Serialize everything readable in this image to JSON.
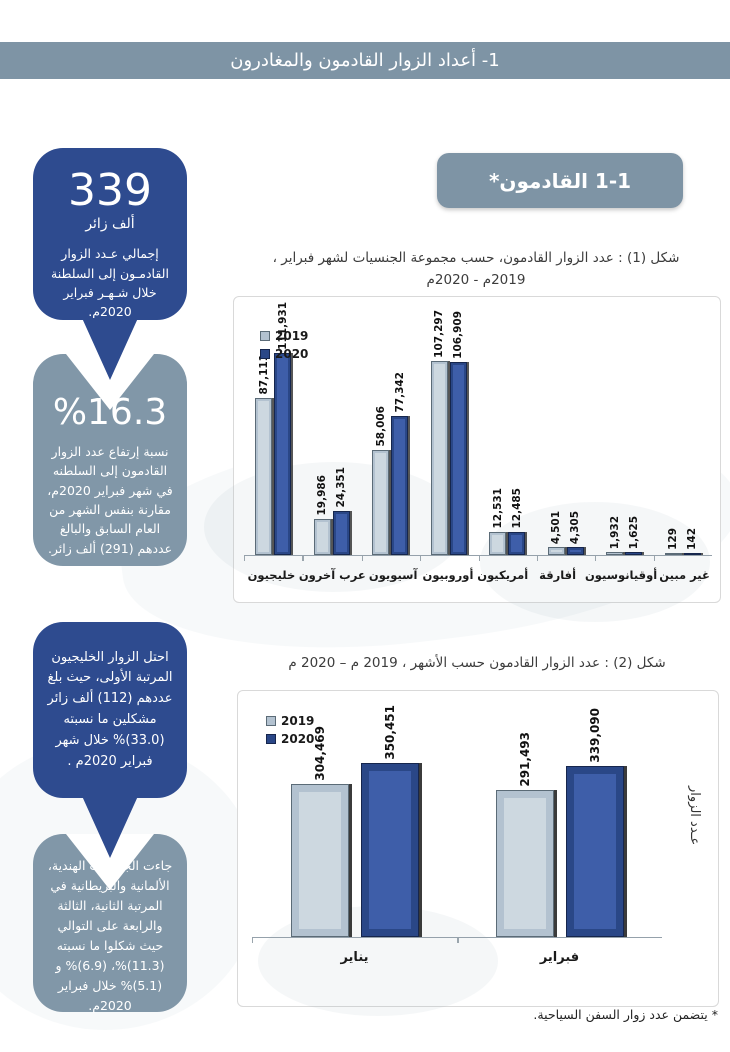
{
  "page": {
    "header_title": "1- أعداد الزوار القادمون والمغادرون",
    "section_pill": "1-1 القادمون*",
    "footnote": "* يتضمن عدد زوار السفن السياحية."
  },
  "colors": {
    "band": "#7E94A5",
    "bubble_blue": "#2E4B8F",
    "bubble_gray": "#8197A8",
    "bar_2020": "#2A4787",
    "bar_2020_panel": "#3E5EA9",
    "bar_2019": "#B3C2D0",
    "bar_2019_panel": "#CDD8E0"
  },
  "callouts": [
    {
      "big": "339",
      "sub": "ألف زائر",
      "text": "إجمالي عـدد الزوار القادمـون إلى السلطنة خلال شـهـر فبراير 2020م."
    },
    {
      "big": "%16.3",
      "text": "نسبة إرتفاع عدد الزوار القادمون إلى السلطنه في شهر فبراير 2020م، مقارنة بنفس الشهر من العام السابق والبالغ عددهم (291) ألف زائر."
    },
    {
      "text": "احتل الزوار الخليجيون المرتبة الأولى، حيث بلغ عددهم (112) ألف زائر مشكلين ما نسبته (33.0)% خلال شهر فبراير 2020م ."
    },
    {
      "text": "جاءت الجنسيات الهندية، الألمانية والبريطانية في المرتبة الثانية، الثالثة والرابعة على التوالي حيث شكلوا ما نسبته (11.3)%، (6.9)% و (5.1)% خلال فبراير 2020م."
    }
  ],
  "chart_data": [
    {
      "type": "bar",
      "title": "شكل (1) : عدد الزوار القادمون، حسب مجموعة الجنسيات لشهر فبراير ، 2019م - 2020م",
      "title_lines": [
        "شكل (1) : عدد الزوار القادمون، حسب مجموعة الجنسيات لشهر فبراير ،",
        "2019م - 2020م"
      ],
      "categories": [
        "غير مبين",
        "أوقيانوسيون",
        "أفارقة",
        "أمريكيون",
        "أوروبيون",
        "آسيويون",
        "عرب آخرون",
        "خليجيون"
      ],
      "series": [
        {
          "name": "2020",
          "values": [
            142,
            1625,
            4305,
            12485,
            106909,
            77342,
            24351,
            111931
          ],
          "labels": [
            "142",
            "1,625",
            "4,305",
            "12,485",
            "106,909",
            "77,342",
            "24,351",
            "111,931"
          ],
          "color": "#2A4787",
          "panel": "#3E5EA9",
          "border": "#16264D"
        },
        {
          "name": "2019",
          "values": [
            129,
            1932,
            4501,
            12531,
            107297,
            58006,
            19986,
            87111
          ],
          "labels": [
            "129",
            "1,932",
            "4,501",
            "12,531",
            "107,297",
            "58,006",
            "19,986",
            "87,111"
          ],
          "color": "#B3C2D0",
          "panel": "#CDD8E0",
          "border": "#5B6B77"
        }
      ],
      "legend": [
        {
          "label": "2019",
          "color": "#B3C2D0",
          "border": "#5B6B77"
        },
        {
          "label": "2020",
          "color": "#2A4787",
          "border": "#16264D"
        }
      ],
      "xlabel": "",
      "ylabel": "",
      "ylim": [
        0,
        112000
      ],
      "grid": false,
      "legend_position": "top-left"
    },
    {
      "type": "bar",
      "title": "شكل (2) :  عدد الزوار القادمون حسب الأشهر ، 2019 م – 2020 م",
      "categories": [
        "فبراير",
        "يناير"
      ],
      "series": [
        {
          "name": "2020",
          "values": [
            339090,
            350451
          ],
          "labels": [
            "339,090",
            "350,451"
          ],
          "color": "#2A4787",
          "panel": "#3E5EA9",
          "border": "#16264D"
        },
        {
          "name": "2019",
          "values": [
            291493,
            304469
          ],
          "labels": [
            "291,493",
            "304,469"
          ],
          "color": "#B3C2D0",
          "panel": "#CDD8E0",
          "border": "#5B6B77"
        }
      ],
      "legend": [
        {
          "label": "2019",
          "color": "#B3C2D0",
          "border": "#5B6B77"
        },
        {
          "label": "2020",
          "color": "#2A4787",
          "border": "#16264D"
        }
      ],
      "xlabel": "",
      "ylabel": "عـدد الزوار",
      "ylim": [
        0,
        352000
      ],
      "grid": false,
      "legend_position": "top-left"
    }
  ]
}
